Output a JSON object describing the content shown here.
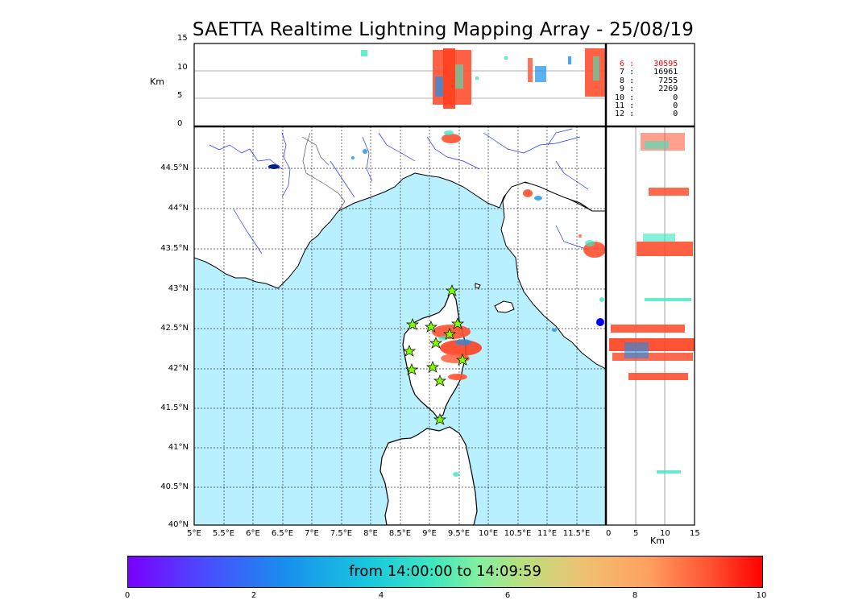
{
  "title": "SAETTA Realtime Lightning Mapping Array - 25/08/19",
  "alt_axis": {
    "label": "Km",
    "ticks": [
      "15",
      "10",
      "5",
      "0"
    ]
  },
  "lon_ticks": [
    "5°E",
    "5.5°E",
    "6°E",
    "6.5°E",
    "7°E",
    "7.5°E",
    "8°E",
    "8.5°E",
    "9°E",
    "9.5°E",
    "10°E",
    "10.5°E",
    "11°E",
    "11.5°E"
  ],
  "lat_ticks": [
    "44.5°N",
    "44°N",
    "43.5°N",
    "43°N",
    "42.5°N",
    "42°N",
    "41.5°N",
    "41°N",
    "40.5°N",
    "40°N"
  ],
  "side_axis": {
    "label": "Km",
    "ticks": [
      "0",
      "5",
      "10",
      "15"
    ]
  },
  "station_counts": [
    {
      "station": "6",
      "count": "30595",
      "highlight": true
    },
    {
      "station": "7",
      "count": "16961",
      "highlight": false
    },
    {
      "station": "8",
      "count": "7255",
      "highlight": false
    },
    {
      "station": "9",
      "count": "2269",
      "highlight": false
    },
    {
      "station": "10",
      "count": "0",
      "highlight": false
    },
    {
      "station": "11",
      "count": "0",
      "highlight": false
    },
    {
      "station": "12",
      "count": "0",
      "highlight": false
    }
  ],
  "colorbar": {
    "label": "from 14:00:00 to 14:09:59",
    "ticks": [
      "0",
      "2",
      "4",
      "6",
      "8",
      "10"
    ]
  },
  "colors": {
    "sea": "#b8f0ff",
    "highlight": "#ff0000",
    "station_marker": "#80ff00"
  }
}
